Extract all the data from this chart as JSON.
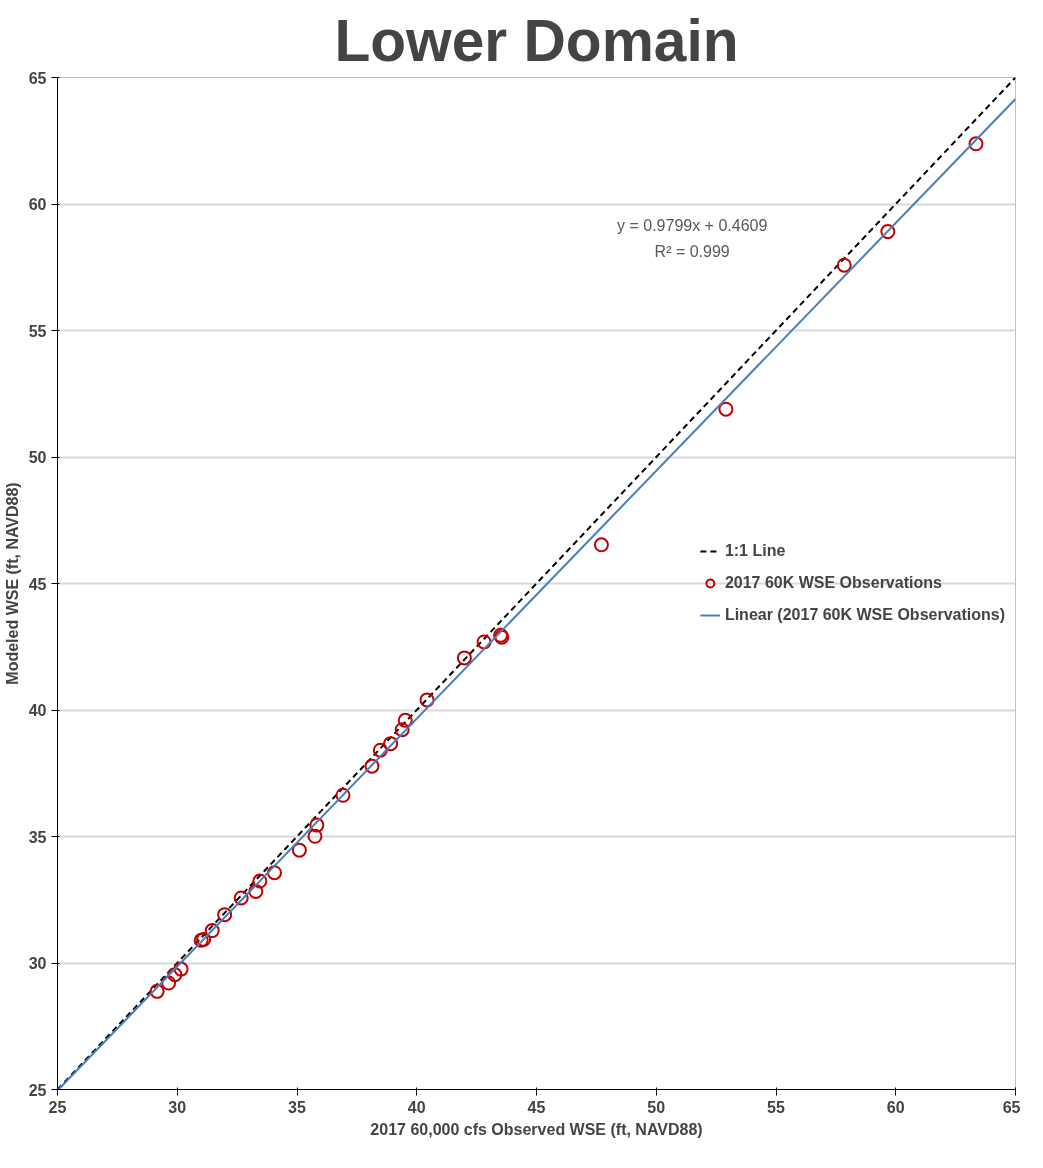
{
  "chart_data": {
    "type": "scatter",
    "title": "Lower Domain",
    "xlabel": "2017 60,000 cfs Observed WSE (ft, NAVD88)",
    "ylabel": "Modeled WSE (ft, NAVD88)",
    "xlim": [
      25,
      65
    ],
    "ylim": [
      25,
      65
    ],
    "xticks": [
      25,
      30,
      35,
      40,
      45,
      50,
      55,
      60,
      65
    ],
    "yticks": [
      25,
      30,
      35,
      40,
      45,
      50,
      55,
      60,
      65
    ],
    "grid": "y",
    "legend": "right",
    "annotations": [
      "y = 0.9799x + 0.4609",
      "R² = 0.999"
    ],
    "series": [
      {
        "name": "1:1 Line",
        "type": "line",
        "color": "#000000",
        "line_style": "dashed",
        "marker": "none",
        "x": [
          25,
          65
        ],
        "values": [
          25,
          65
        ]
      },
      {
        "name": "2017 60K WSE Observations",
        "color": "#c00000",
        "marker": "circle",
        "x": [
          29.16,
          29.64,
          29.9,
          30.16,
          31.0,
          31.1,
          31.46,
          31.98,
          32.67,
          33.28,
          33.45,
          34.06,
          35.1,
          35.75,
          35.83,
          36.92,
          38.13,
          38.48,
          38.91,
          39.39,
          39.52,
          40.43,
          41.99,
          42.81,
          43.5,
          43.55,
          47.71,
          52.91,
          57.85,
          59.67,
          63.35
        ],
        "values": [
          28.88,
          29.21,
          29.54,
          29.76,
          30.9,
          30.93,
          31.28,
          31.91,
          32.57,
          32.83,
          33.24,
          33.57,
          34.46,
          35.01,
          35.45,
          36.63,
          37.78,
          38.41,
          38.67,
          39.22,
          39.59,
          40.4,
          42.06,
          42.69,
          42.95,
          42.88,
          46.53,
          51.89,
          57.58,
          58.91,
          62.38
        ]
      },
      {
        "name": "Linear (2017 60K WSE Observations)",
        "type": "line",
        "color": "#4a7ebb",
        "line_style": "solid",
        "marker": "none",
        "x": [
          25.05,
          65
        ],
        "values": [
          25.01,
          64.15
        ]
      }
    ]
  }
}
